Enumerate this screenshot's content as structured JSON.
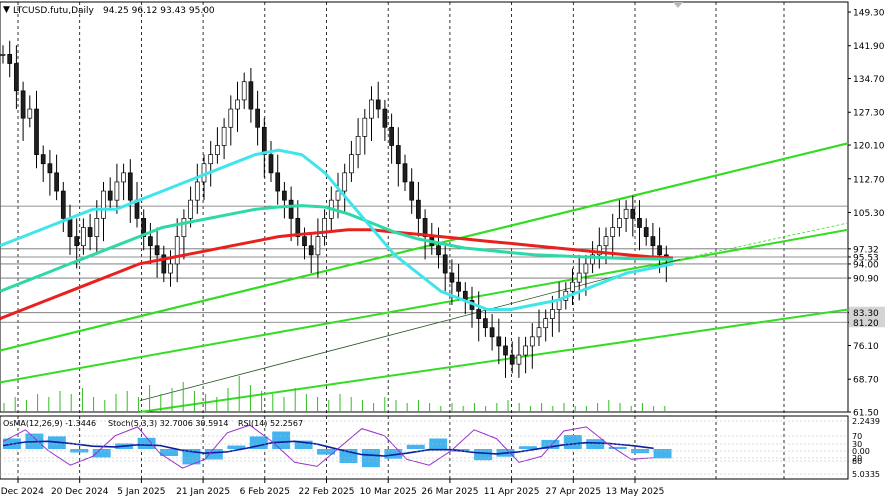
{
  "header": {
    "symbol": "LTCUSD.futu,Daily",
    "ohlc": "94.25 96.12 93.43 95.00"
  },
  "indicator_label": {
    "macd": "OsMA(12,26,9) -1.3446",
    "stoch": "Stoch(5,3,3) 32.7006 30.5914",
    "rsi": "RSI(14) 52.2567"
  },
  "colors": {
    "bull_candle": "#1f1f1f",
    "grid": "#000000",
    "ema_red": "#e8211f",
    "ema_teal": "#2dd9a6",
    "ema_cyan": "#3fe5ea",
    "channel": "#33dd22",
    "histogram": "#44b4ee",
    "signal": "#0a1f9e",
    "stoch_k": "#9a2fd0",
    "volume": "#33bb22"
  },
  "chart_data": {
    "type": "candlestick",
    "title": "LTCUSD.futu,Daily",
    "y_ticks": [
      "149.30",
      "141.90",
      "134.70",
      "127.30",
      "120.10",
      "112.70",
      "105.30",
      "97.32",
      "95.53",
      "94.00",
      "90.90",
      "83.30",
      "81.20",
      "76.10",
      "68.70",
      "61.50"
    ],
    "x_labels": [
      "4 Dec 2024",
      "20 Dec 2024",
      "5 Jan 2025",
      "21 Jan 2025",
      "6 Feb 2025",
      "22 Feb 2025",
      "10 Mar 2025",
      "26 Mar 2025",
      "11 Apr 2025",
      "27 Apr 2025",
      "13 May 2025"
    ],
    "horizontal_levels": [
      106.7,
      97.32,
      95.53,
      94.0,
      90.9,
      83.3,
      81.2
    ],
    "highlighted_levels": [
      "106.70",
      "83.30",
      "81.20"
    ],
    "ylim": [
      61.5,
      151.5
    ],
    "closes": [
      140,
      138,
      132,
      126,
      128,
      118,
      116,
      114,
      110,
      104,
      100,
      98,
      102,
      100,
      104,
      110,
      108,
      112,
      114,
      108,
      104,
      100,
      98,
      96,
      92,
      94,
      100,
      104,
      108,
      112,
      116,
      118,
      120,
      124,
      128,
      130,
      134,
      128,
      124,
      118,
      114,
      110,
      108,
      104,
      100,
      98,
      96,
      100,
      104,
      108,
      110,
      114,
      118,
      122,
      126,
      130,
      128,
      124,
      120,
      116,
      112,
      108,
      104,
      100,
      98,
      96,
      92,
      90,
      88,
      86,
      84,
      82,
      80,
      78,
      76,
      74,
      72,
      74,
      76,
      78,
      80,
      82,
      84,
      86,
      88,
      90,
      92,
      94,
      96,
      98,
      100,
      102,
      104,
      106,
      104,
      102,
      100,
      98,
      96,
      95
    ],
    "series": [
      {
        "name": "EMA 200",
        "values": [
          82,
          84,
          86,
          88,
          90,
          92,
          94,
          95,
          96,
          97,
          98,
          99,
          100,
          100.5,
          101,
          101.5,
          101.5,
          101,
          100.5,
          100,
          99.5,
          99,
          98.5,
          98,
          97.5,
          97,
          96.5,
          96,
          95.6,
          95.3
        ]
      },
      {
        "name": "EMA 144",
        "values": [
          88,
          90,
          92,
          94,
          96,
          98,
          100,
          102,
          103,
          104,
          105,
          106,
          106.5,
          106.8,
          106.5,
          105,
          103,
          101,
          99.5,
          98.5,
          97.5,
          97,
          96.5,
          96,
          95.8,
          95.6,
          95.4,
          95.2,
          95.1,
          95.0
        ]
      },
      {
        "name": "EMA 50",
        "values": [
          98,
          100,
          102,
          104,
          106,
          106,
          108,
          110,
          112,
          114,
          116,
          118,
          119,
          118,
          114,
          108,
          102,
          96,
          92,
          88,
          86,
          84,
          84,
          85,
          86,
          88,
          90,
          92,
          93,
          94
        ]
      }
    ],
    "volume": [
      3,
      5,
      4,
      6,
      5,
      7,
      6,
      8,
      5,
      4,
      6,
      7,
      5,
      9,
      6,
      8,
      10,
      7,
      6,
      5,
      8,
      12,
      9,
      7,
      6,
      5,
      8,
      6,
      5,
      4,
      6,
      5,
      4,
      3,
      5,
      4,
      3,
      4,
      3,
      2,
      3,
      2,
      3,
      2,
      3,
      4,
      3,
      2,
      3,
      2,
      3,
      2,
      2,
      3,
      4,
      3,
      2,
      3,
      2,
      2
    ],
    "osma": [
      1.5,
      2.2,
      1.8,
      -0.5,
      -1.2,
      0.8,
      1.6,
      -1.0,
      -2.2,
      -1.5,
      0.5,
      1.8,
      2.5,
      1.2,
      -0.8,
      -2.0,
      -2.6,
      -1.4,
      0.6,
      1.5,
      -0.4,
      -1.6,
      -1.1,
      0.4,
      1.3,
      2.0,
      1.4,
      0.3,
      -0.6,
      -1.3446
    ],
    "macd_signal": [
      0.5,
      1.0,
      1.1,
      0.8,
      0.4,
      0.3,
      0.6,
      0.5,
      -0.2,
      -0.6,
      -0.4,
      0.2,
      0.9,
      1.1,
      0.7,
      -0.1,
      -0.8,
      -1.0,
      -0.6,
      -0.1,
      -0.1,
      -0.5,
      -0.7,
      -0.4,
      0.1,
      0.6,
      0.9,
      0.8,
      0.5,
      0.1
    ],
    "stoch_k": [
      60,
      80,
      45,
      20,
      35,
      70,
      85,
      40,
      15,
      30,
      75,
      88,
      60,
      25,
      18,
      50,
      82,
      70,
      30,
      20,
      45,
      80,
      65,
      25,
      35,
      78,
      85,
      55,
      30,
      32.7
    ],
    "indicator_levels": [
      "2.2439",
      "70",
      "30",
      "0.00",
      "20",
      "80",
      "5.0335"
    ]
  }
}
